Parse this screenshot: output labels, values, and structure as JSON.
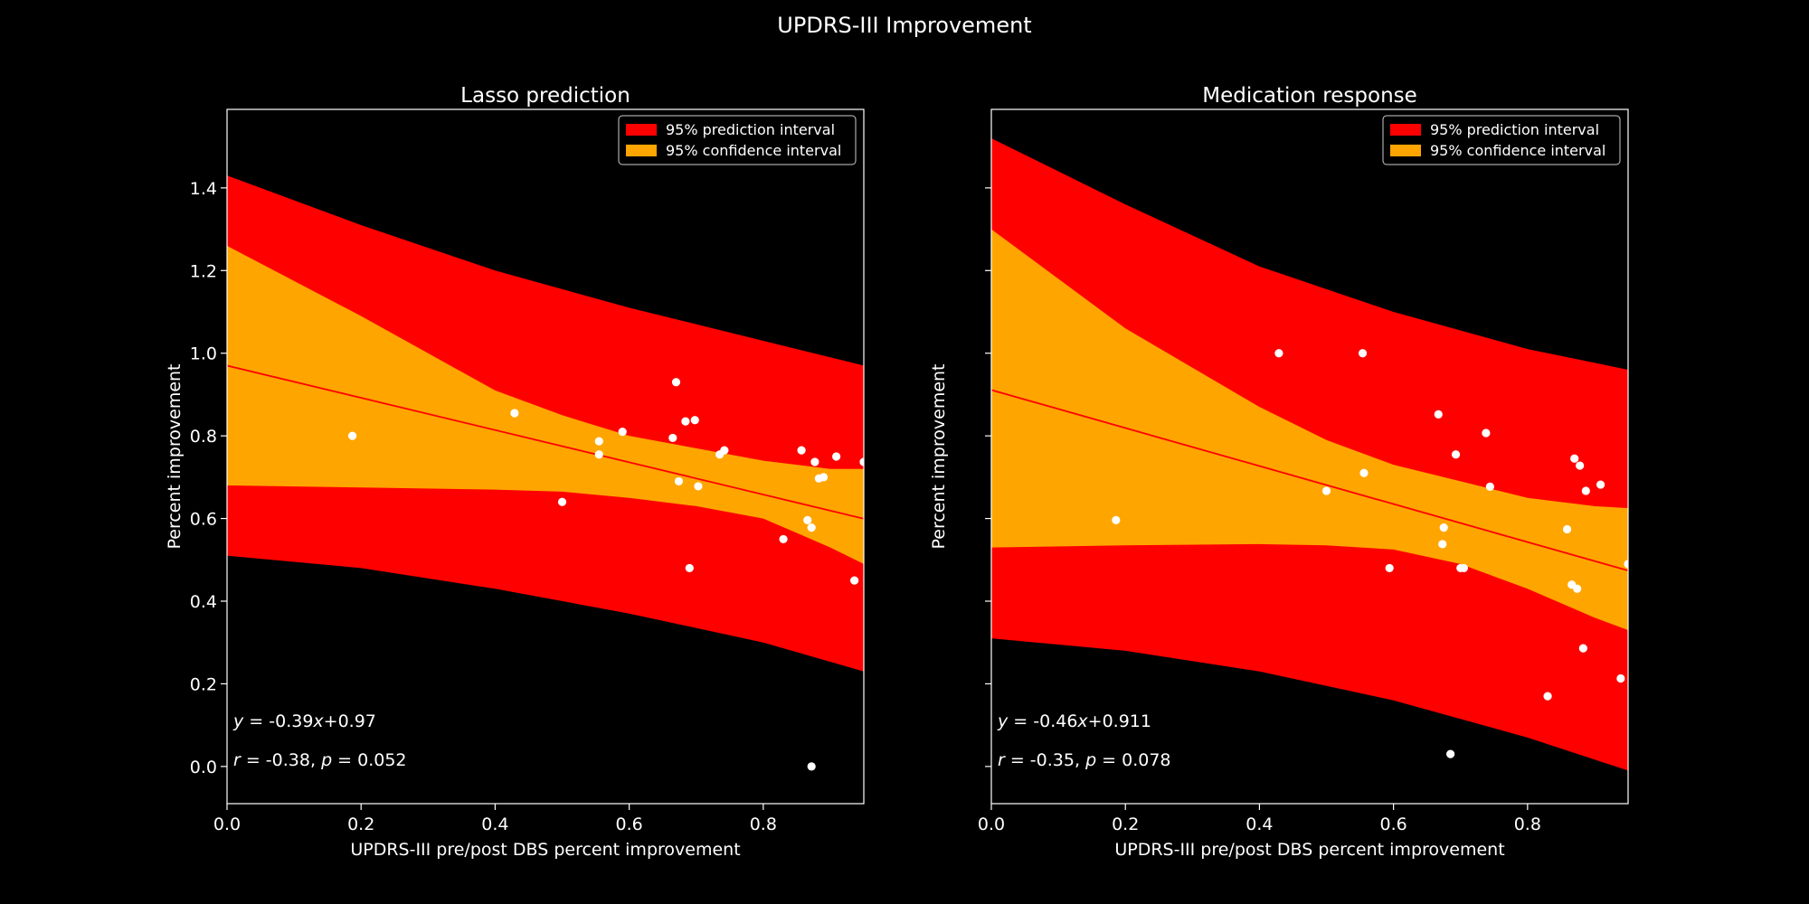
{
  "suptitle": "UPDRS-III Improvement",
  "colors": {
    "background": "#000000",
    "foreground": "#ffffff",
    "prediction_band": "#ff0000",
    "confidence_band": "#ffa500",
    "fit_line": "#ff0000",
    "points": "#ffffff"
  },
  "chart_data": [
    {
      "type": "scatter",
      "title": "Lasso prediction",
      "xlabel": "UPDRS-III pre/post DBS percent improvement",
      "ylabel": "Percent improvement",
      "xlim": [
        0,
        0.95
      ],
      "ylim": [
        -0.09,
        1.59
      ],
      "xticks": [
        "0.0",
        "0.2",
        "0.4",
        "0.6",
        "0.8"
      ],
      "yticks": [
        "0.0",
        "0.2",
        "0.4",
        "0.6",
        "0.8",
        "1.0",
        "1.2",
        "1.4"
      ],
      "show_ytick_labels": true,
      "grid": false,
      "legend": {
        "placement": "top-right",
        "entries": [
          "95% prediction interval",
          "95% confidence interval"
        ]
      },
      "equation_text": "y = -0.39x+0.97",
      "stats_text": "r = -0.38, p = 0.052",
      "fit": {
        "slope": -0.39,
        "intercept": 0.97
      },
      "prediction_interval": {
        "x": [
          0,
          0.2,
          0.4,
          0.6,
          0.8,
          0.95
        ],
        "upper": [
          1.43,
          1.31,
          1.2,
          1.11,
          1.03,
          0.97
        ],
        "lower": [
          0.51,
          0.48,
          0.43,
          0.37,
          0.3,
          0.23
        ]
      },
      "confidence_interval": {
        "x": [
          0,
          0.2,
          0.4,
          0.5,
          0.6,
          0.7,
          0.8,
          0.9,
          0.95
        ],
        "upper": [
          1.26,
          1.09,
          0.91,
          0.85,
          0.8,
          0.77,
          0.74,
          0.72,
          0.72
        ],
        "lower": [
          0.68,
          0.675,
          0.67,
          0.665,
          0.65,
          0.63,
          0.6,
          0.53,
          0.49
        ]
      },
      "points": {
        "x": [
          0.187,
          0.429,
          0.5,
          0.555,
          0.555,
          0.59,
          0.665,
          0.67,
          0.674,
          0.684,
          0.69,
          0.698,
          0.703,
          0.735,
          0.742,
          0.83,
          0.857,
          0.866,
          0.872,
          0.872,
          0.877,
          0.883,
          0.89,
          0.909,
          0.936,
          0.95
        ],
        "y": [
          0.8,
          0.855,
          0.64,
          0.787,
          0.755,
          0.81,
          0.795,
          0.93,
          0.69,
          0.835,
          0.48,
          0.838,
          0.678,
          0.755,
          0.765,
          0.55,
          0.765,
          0.596,
          0.578,
          0.0,
          0.737,
          0.697,
          0.7,
          0.75,
          0.45,
          0.737
        ]
      }
    },
    {
      "type": "scatter",
      "title": "Medication response",
      "xlabel": "UPDRS-III pre/post DBS percent improvement",
      "ylabel": "Percent improvement",
      "xlim": [
        0,
        0.95
      ],
      "ylim": [
        -0.09,
        1.59
      ],
      "xticks": [
        "0.0",
        "0.2",
        "0.4",
        "0.6",
        "0.8"
      ],
      "yticks": [
        "0.0",
        "0.2",
        "0.4",
        "0.6",
        "0.8",
        "1.0",
        "1.2",
        "1.4"
      ],
      "show_ytick_labels": false,
      "grid": false,
      "legend": {
        "placement": "top-right",
        "entries": [
          "95% prediction interval",
          "95% confidence interval"
        ]
      },
      "equation_text": "y = -0.46x+0.911",
      "stats_text": "r = -0.35, p = 0.078",
      "fit": {
        "slope": -0.46,
        "intercept": 0.911
      },
      "prediction_interval": {
        "x": [
          0,
          0.2,
          0.4,
          0.6,
          0.8,
          0.95
        ],
        "upper": [
          1.52,
          1.36,
          1.21,
          1.1,
          1.01,
          0.96
        ],
        "lower": [
          0.31,
          0.28,
          0.23,
          0.16,
          0.07,
          -0.01
        ]
      },
      "confidence_interval": {
        "x": [
          0,
          0.2,
          0.4,
          0.5,
          0.6,
          0.7,
          0.8,
          0.9,
          0.95
        ],
        "upper": [
          1.3,
          1.06,
          0.87,
          0.79,
          0.73,
          0.69,
          0.65,
          0.63,
          0.625
        ],
        "lower": [
          0.53,
          0.535,
          0.538,
          0.535,
          0.525,
          0.49,
          0.43,
          0.36,
          0.33
        ]
      },
      "points": {
        "x": [
          0.186,
          0.429,
          0.5,
          0.554,
          0.556,
          0.594,
          0.667,
          0.673,
          0.675,
          0.685,
          0.693,
          0.7,
          0.705,
          0.738,
          0.744,
          0.83,
          0.859,
          0.866,
          0.87,
          0.874,
          0.878,
          0.883,
          0.887,
          0.909,
          0.939,
          0.95
        ],
        "y": [
          0.596,
          1.0,
          0.667,
          1.0,
          0.71,
          0.48,
          0.852,
          0.538,
          0.578,
          0.03,
          0.755,
          0.48,
          0.48,
          0.807,
          0.677,
          0.17,
          0.574,
          0.44,
          0.745,
          0.43,
          0.728,
          0.286,
          0.667,
          0.682,
          0.213,
          0.49
        ]
      }
    }
  ]
}
